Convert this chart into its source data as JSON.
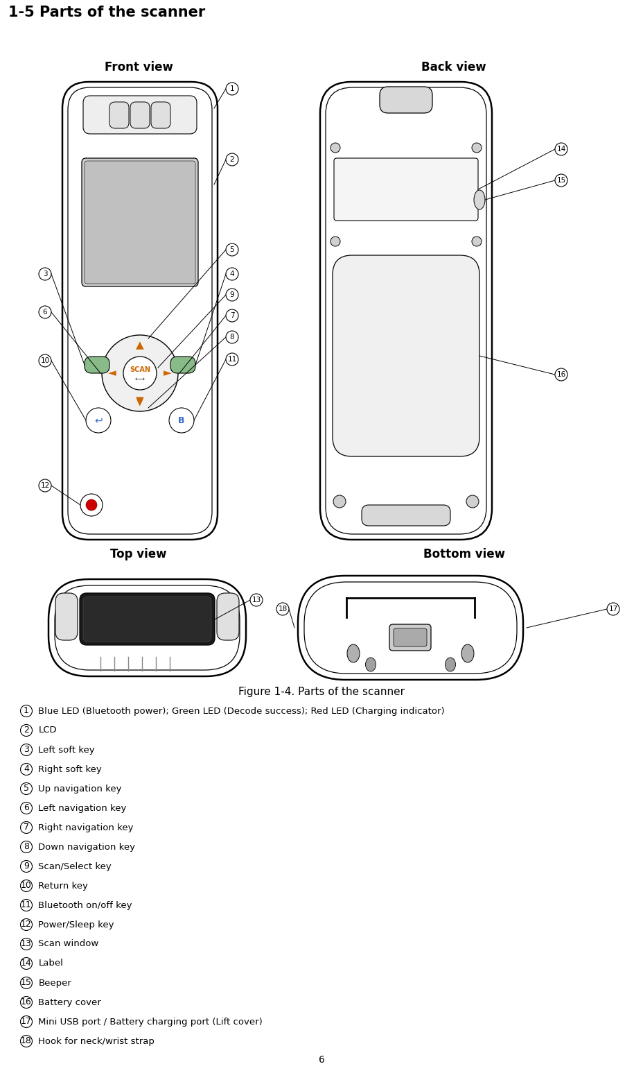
{
  "title": "1-5 Parts of the scanner",
  "figure_caption": "Figure 1-4. Parts of the scanner",
  "page_number": "6",
  "view_labels": {
    "front": "Front view",
    "back": "Back view",
    "top": "Top view",
    "bottom": "Bottom view"
  },
  "legend_items": [
    {
      "num": "1",
      "text": "Blue LED (Bluetooth power); Green LED (Decode success); Red LED (Charging indicator)"
    },
    {
      "num": "2",
      "text": "LCD"
    },
    {
      "num": "3",
      "text": "Left soft key"
    },
    {
      "num": "4",
      "text": "Right soft key"
    },
    {
      "num": "5",
      "text": "Up navigation key"
    },
    {
      "num": "6",
      "text": "Left navigation key"
    },
    {
      "num": "7",
      "text": "Right navigation key"
    },
    {
      "num": "8",
      "text": "Down navigation key"
    },
    {
      "num": "9",
      "text": "Scan/Select key"
    },
    {
      "num": "10",
      "text": "Return key"
    },
    {
      "num": "11",
      "text": "Bluetooth on/off key"
    },
    {
      "num": "12",
      "text": "Power/Sleep key"
    },
    {
      "num": "13",
      "text": "Scan window"
    },
    {
      "num": "14",
      "text": "Label"
    },
    {
      "num": "15",
      "text": "Beeper"
    },
    {
      "num": "16",
      "text": "Battery cover"
    },
    {
      "num": "17",
      "text": "Mini USB port / Battery charging port (Lift cover)"
    },
    {
      "num": "18",
      "text": "Hook for neck/wrist strap"
    }
  ],
  "bg_color": "#ffffff",
  "text_color": "#000000",
  "line_color": "#000000",
  "title_fontsize": 15,
  "view_label_fontsize": 12,
  "caption_fontsize": 11,
  "legend_fontsize": 9.5,
  "num_label_fontsize": 7.5
}
